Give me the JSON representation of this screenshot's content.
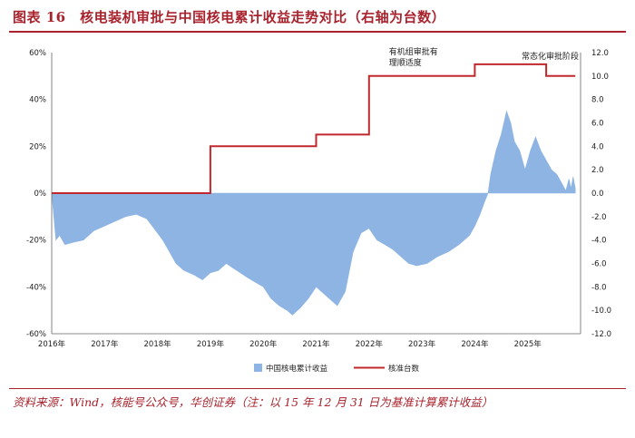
{
  "figure": {
    "title": "图表 16　核电装机审批与中国核电累计收益走势对比（右轴为台数）",
    "source": "资料来源：Wind，核能号公众号，华创证券（注：以 15 年 12 月 31 日为基准计算累计收益）"
  },
  "chart_data": {
    "type": "area+line",
    "title": "",
    "x_ticks": [
      "2016年",
      "2017年",
      "2018年",
      "2019年",
      "2020年",
      "2021年",
      "2022年",
      "2023年",
      "2024年",
      "2025年"
    ],
    "y_left": {
      "ticks": [
        "60%",
        "40%",
        "20%",
        "0%",
        "-20%",
        "-40%",
        "-60%"
      ],
      "range": [
        -60,
        60
      ]
    },
    "y_right": {
      "ticks": [
        "12.0",
        "10.0",
        "8.0",
        "6.0",
        "4.0",
        "2.0",
        "0.0",
        "-2.0",
        "-4.0",
        "-6.0",
        "-8.0",
        "-10.0",
        "-12.0"
      ],
      "range": [
        -12,
        12
      ]
    },
    "x_range": [
      2016.0,
      2026.0
    ],
    "series": [
      {
        "name": "中国核电累计收益",
        "type": "area",
        "axis": "left",
        "color": "#8eb4e3",
        "x": [
          2016.0,
          2016.08,
          2016.15,
          2016.25,
          2016.4,
          2016.6,
          2016.8,
          2017.0,
          2017.2,
          2017.4,
          2017.6,
          2017.8,
          2017.9,
          2018.1,
          2018.2,
          2018.35,
          2018.5,
          2018.7,
          2018.85,
          2019.0,
          2019.15,
          2019.3,
          2019.5,
          2019.7,
          2019.85,
          2020.0,
          2020.15,
          2020.3,
          2020.45,
          2020.55,
          2020.7,
          2020.85,
          2021.0,
          2021.1,
          2021.25,
          2021.4,
          2021.55,
          2021.7,
          2021.85,
          2022.0,
          2022.15,
          2022.3,
          2022.45,
          2022.6,
          2022.75,
          2022.9,
          2023.1,
          2023.3,
          2023.5,
          2023.7,
          2023.9,
          2024.0,
          2024.1,
          2024.18,
          2024.25,
          2024.3,
          2024.4,
          2024.5,
          2024.6,
          2024.68,
          2024.75,
          2024.85,
          2024.95,
          2025.05,
          2025.15,
          2025.25,
          2025.35,
          2025.45,
          2025.55,
          2025.65,
          2025.72,
          2025.78,
          2025.82,
          2025.86,
          2025.9
        ],
        "values": [
          0,
          -20,
          -18,
          -22,
          -21,
          -20,
          -16,
          -14,
          -12,
          -10,
          -9,
          -11,
          -14,
          -20,
          -24,
          -30,
          -33,
          -35,
          -37,
          -34,
          -33,
          -30,
          -33,
          -36,
          -38,
          -40,
          -45,
          -48,
          -50,
          -52,
          -49,
          -45,
          -40,
          -42,
          -45,
          -48,
          -42,
          -25,
          -17,
          -15,
          -20,
          -22,
          -24,
          -27,
          -30,
          -31,
          -30,
          -27,
          -25,
          -22,
          -18,
          -14,
          -9,
          -4,
          0,
          8,
          18,
          25,
          35,
          30,
          22,
          18,
          10,
          18,
          24,
          18,
          14,
          10,
          8,
          4,
          1,
          6,
          2,
          7,
          2
        ]
      },
      {
        "name": "核准台数",
        "type": "step",
        "axis": "right",
        "color": "#c0282e",
        "x": [
          2016.0,
          2019.0,
          2021.0,
          2022.0,
          2024.0,
          2025.35,
          2025.9
        ],
        "values": [
          0,
          4,
          5,
          10,
          11,
          10,
          10
        ]
      }
    ],
    "annotations": [
      {
        "text_lines": [
          "有机组审批有",
          "理顺适度"
        ],
        "x": 2022.0,
        "y_right": 10.0
      },
      {
        "text_lines": [
          "常态化审批阶段"
        ],
        "x": 2024.8,
        "y_right": 11.0
      }
    ],
    "legend": {
      "placement": "bottom-center",
      "items": [
        {
          "label": "中国核电累计收益",
          "swatch": "box",
          "color": "#8eb4e3"
        },
        {
          "label": "核准台数",
          "swatch": "line",
          "color": "#c0282e"
        }
      ]
    }
  }
}
